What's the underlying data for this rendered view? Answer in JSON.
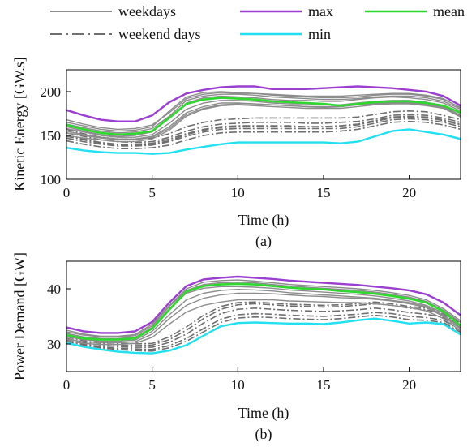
{
  "legend": {
    "items": [
      {
        "key": "weekdays",
        "label": "weekdays",
        "color": "#8c8c8c",
        "dash": "solid"
      },
      {
        "key": "weekend",
        "label": "weekend days",
        "color": "#6e6e6e",
        "dash": "dashdot"
      },
      {
        "key": "max",
        "label": "max",
        "color": "#9b3fd0",
        "dash": "solid"
      },
      {
        "key": "min",
        "label": "min",
        "color": "#22e0f0",
        "dash": "solid"
      },
      {
        "key": "mean",
        "label": "mean",
        "color": "#2ed82e",
        "dash": "solid"
      }
    ]
  },
  "colors": {
    "weekdays": "#8c8c8c",
    "weekend": "#6e6e6e",
    "max": "#9b3fd0",
    "min": "#22e0f0",
    "mean": "#2ed82e"
  },
  "chart_data": [
    {
      "type": "line",
      "caption": "(a)",
      "xlabel": "Time (h)",
      "ylabel": "Kinetic Energy [GW.s]",
      "xlim": [
        0,
        23
      ],
      "ylim": [
        100,
        225
      ],
      "xticks": [
        0,
        5,
        10,
        15,
        20
      ],
      "yticks": [
        100,
        150,
        200
      ],
      "x": [
        0,
        1,
        2,
        3,
        4,
        5,
        6,
        7,
        8,
        9,
        10,
        11,
        12,
        13,
        14,
        15,
        16,
        17,
        18,
        19,
        20,
        21,
        22,
        23
      ],
      "series": [
        {
          "name": "max",
          "role": "max",
          "values": [
            179,
            173,
            168,
            166,
            166,
            173,
            188,
            198,
            202,
            205,
            206,
            206,
            203,
            203,
            203,
            204,
            205,
            206,
            205,
            204,
            202,
            200,
            195,
            184
          ]
        },
        {
          "name": "mean",
          "role": "mean",
          "values": [
            162,
            157,
            153,
            151,
            152,
            155,
            170,
            186,
            191,
            193,
            192,
            191,
            189,
            188,
            187,
            186,
            184,
            186,
            188,
            189,
            189,
            187,
            184,
            176
          ]
        },
        {
          "name": "min",
          "role": "min",
          "values": [
            136,
            133,
            131,
            130,
            130,
            129,
            130,
            134,
            137,
            140,
            142,
            142,
            142,
            142,
            142,
            142,
            141,
            143,
            149,
            155,
            157,
            154,
            151,
            146
          ]
        },
        {
          "role": "weekday",
          "values": [
            165,
            161,
            157,
            155,
            156,
            160,
            178,
            194,
            199,
            200,
            199,
            198,
            196,
            195,
            194,
            193,
            193,
            194,
            196,
            197,
            197,
            195,
            191,
            182
          ]
        },
        {
          "role": "weekday",
          "values": [
            160,
            155,
            151,
            149,
            150,
            154,
            170,
            187,
            193,
            195,
            194,
            193,
            191,
            190,
            190,
            189,
            189,
            191,
            193,
            194,
            193,
            191,
            187,
            178
          ]
        },
        {
          "role": "weekday",
          "values": [
            158,
            154,
            150,
            148,
            148,
            151,
            164,
            180,
            187,
            190,
            190,
            189,
            187,
            186,
            186,
            185,
            185,
            187,
            189,
            190,
            190,
            188,
            184,
            175
          ]
        },
        {
          "role": "weekday",
          "values": [
            155,
            151,
            148,
            146,
            146,
            149,
            160,
            176,
            183,
            187,
            187,
            186,
            185,
            184,
            183,
            182,
            183,
            185,
            187,
            188,
            188,
            186,
            183,
            173
          ]
        },
        {
          "role": "weekday",
          "values": [
            163,
            159,
            155,
            153,
            154,
            158,
            172,
            190,
            195,
            197,
            197,
            196,
            194,
            193,
            192,
            191,
            191,
            192,
            194,
            195,
            195,
            193,
            189,
            180
          ]
        },
        {
          "role": "weekday",
          "values": [
            150,
            147,
            145,
            143,
            143,
            146,
            156,
            172,
            180,
            184,
            185,
            184,
            183,
            182,
            181,
            181,
            181,
            183,
            185,
            186,
            186,
            184,
            181,
            171
          ]
        },
        {
          "role": "weekday",
          "values": [
            153,
            150,
            147,
            145,
            145,
            148,
            158,
            174,
            181,
            185,
            186,
            186,
            185,
            184,
            183,
            183,
            183,
            185,
            186,
            187,
            187,
            185,
            182,
            172
          ]
        },
        {
          "role": "weekday",
          "values": [
            168,
            163,
            159,
            157,
            158,
            162,
            176,
            192,
            197,
            199,
            198,
            198,
            197,
            196,
            195,
            195,
            195,
            196,
            197,
            198,
            198,
            196,
            192,
            181
          ]
        },
        {
          "role": "weekend",
          "values": [
            150,
            146,
            142,
            140,
            140,
            141,
            146,
            152,
            157,
            160,
            161,
            161,
            161,
            161,
            160,
            160,
            161,
            162,
            166,
            170,
            171,
            170,
            167,
            162
          ]
        },
        {
          "role": "weekend",
          "values": [
            147,
            143,
            140,
            138,
            138,
            139,
            143,
            149,
            154,
            157,
            158,
            158,
            158,
            158,
            158,
            158,
            158,
            160,
            164,
            168,
            169,
            168,
            165,
            160
          ]
        },
        {
          "role": "weekend",
          "values": [
            153,
            149,
            145,
            143,
            142,
            143,
            148,
            155,
            160,
            163,
            164,
            165,
            165,
            165,
            164,
            164,
            165,
            166,
            169,
            173,
            174,
            173,
            170,
            165
          ]
        },
        {
          "role": "weekend",
          "values": [
            144,
            140,
            137,
            135,
            135,
            136,
            139,
            145,
            150,
            153,
            154,
            154,
            154,
            154,
            154,
            154,
            155,
            157,
            161,
            165,
            166,
            165,
            162,
            157
          ]
        },
        {
          "role": "weekend",
          "values": [
            157,
            152,
            148,
            146,
            146,
            147,
            152,
            160,
            165,
            168,
            169,
            170,
            170,
            170,
            170,
            170,
            170,
            171,
            174,
            177,
            178,
            177,
            173,
            168
          ]
        },
        {
          "role": "weekend",
          "values": [
            149,
            145,
            141,
            139,
            139,
            140,
            144,
            151,
            156,
            159,
            160,
            160,
            160,
            160,
            160,
            160,
            161,
            163,
            167,
            171,
            172,
            171,
            168,
            163
          ]
        }
      ]
    },
    {
      "type": "line",
      "caption": "(b)",
      "xlabel": "Time (h)",
      "ylabel": "Power Demand [GW]",
      "xlim": [
        0,
        23
      ],
      "ylim": [
        25,
        45
      ],
      "xticks": [
        0,
        5,
        10,
        15,
        20
      ],
      "yticks": [
        30,
        40
      ],
      "x": [
        0,
        1,
        2,
        3,
        4,
        5,
        6,
        7,
        8,
        9,
        10,
        11,
        12,
        13,
        14,
        15,
        16,
        17,
        18,
        19,
        20,
        21,
        22,
        23
      ],
      "series": [
        {
          "name": "max",
          "role": "max",
          "values": [
            33.0,
            32.3,
            32.0,
            32.0,
            32.3,
            34.0,
            37.5,
            40.5,
            41.7,
            42.0,
            42.2,
            42.0,
            41.8,
            41.5,
            41.3,
            41.1,
            40.9,
            40.7,
            40.4,
            40.1,
            39.7,
            39.0,
            37.5,
            35.2
          ]
        },
        {
          "name": "mean",
          "role": "mean",
          "values": [
            31.6,
            31.0,
            30.8,
            30.8,
            31.0,
            32.8,
            36.2,
            39.5,
            40.5,
            40.8,
            40.9,
            40.8,
            40.5,
            40.2,
            40.0,
            39.9,
            39.6,
            39.4,
            39.1,
            38.7,
            38.2,
            37.5,
            35.9,
            33.3
          ]
        },
        {
          "name": "min",
          "role": "min",
          "values": [
            30.2,
            29.5,
            29.0,
            28.6,
            28.4,
            28.3,
            28.8,
            29.8,
            31.5,
            33.2,
            33.8,
            33.9,
            33.8,
            33.7,
            33.7,
            33.6,
            33.9,
            34.3,
            34.6,
            34.2,
            33.7,
            33.9,
            33.6,
            31.7
          ]
        },
        {
          "role": "weekday",
          "values": [
            32.5,
            31.8,
            31.4,
            31.4,
            31.7,
            33.6,
            37.0,
            40.0,
            41.2,
            41.5,
            41.6,
            41.4,
            41.1,
            40.8,
            40.6,
            40.4,
            40.2,
            40.0,
            39.7,
            39.3,
            38.8,
            38.0,
            36.4,
            34.2
          ]
        },
        {
          "role": "weekday",
          "values": [
            31.9,
            31.3,
            31.0,
            31.0,
            31.2,
            33.0,
            36.4,
            39.2,
            40.1,
            40.4,
            40.4,
            40.3,
            40.1,
            39.8,
            39.6,
            39.4,
            39.2,
            39.0,
            38.7,
            38.3,
            37.8,
            37.0,
            35.6,
            33.5
          ]
        },
        {
          "role": "weekday",
          "values": [
            31.3,
            30.8,
            30.5,
            30.5,
            30.7,
            32.3,
            35.3,
            38.0,
            39.2,
            39.7,
            39.9,
            39.8,
            39.6,
            39.3,
            39.1,
            38.9,
            38.7,
            38.5,
            38.3,
            37.9,
            37.5,
            36.8,
            35.2,
            33.0
          ]
        },
        {
          "role": "weekday",
          "values": [
            30.9,
            30.4,
            30.2,
            30.2,
            30.4,
            31.8,
            34.6,
            37.0,
            38.3,
            38.9,
            39.2,
            39.2,
            39.1,
            38.9,
            38.7,
            38.6,
            38.4,
            38.3,
            38.1,
            37.8,
            37.3,
            36.6,
            35.0,
            32.7
          ]
        },
        {
          "role": "weekday",
          "values": [
            30.6,
            30.1,
            29.9,
            29.9,
            30.1,
            31.2,
            33.6,
            35.8,
            37.0,
            37.6,
            38.0,
            38.0,
            38.0,
            37.8,
            37.7,
            37.6,
            37.5,
            37.5,
            37.3,
            37.0,
            36.6,
            36.0,
            34.6,
            32.4
          ]
        },
        {
          "role": "weekday",
          "values": [
            32.2,
            31.6,
            31.3,
            31.3,
            31.5,
            33.3,
            36.8,
            39.7,
            40.8,
            41.1,
            41.2,
            41.1,
            40.8,
            40.5,
            40.3,
            40.1,
            39.9,
            39.7,
            39.4,
            39.0,
            38.5,
            37.7,
            36.1,
            33.9
          ]
        },
        {
          "role": "weekend",
          "values": [
            31.0,
            30.3,
            29.8,
            29.5,
            29.4,
            29.4,
            30.3,
            31.8,
            33.8,
            35.5,
            36.3,
            36.5,
            36.3,
            36.1,
            36.0,
            35.9,
            36.0,
            36.2,
            36.5,
            36.2,
            35.7,
            35.4,
            34.8,
            32.8
          ]
        },
        {
          "role": "weekend",
          "values": [
            30.7,
            30.0,
            29.5,
            29.2,
            29.1,
            29.0,
            29.7,
            31.0,
            32.8,
            34.5,
            35.3,
            35.5,
            35.4,
            35.2,
            35.1,
            35.0,
            35.2,
            35.4,
            35.7,
            35.5,
            35.0,
            34.8,
            34.3,
            32.4
          ]
        },
        {
          "role": "weekend",
          "values": [
            31.3,
            30.6,
            30.1,
            29.8,
            29.7,
            29.8,
            30.8,
            32.5,
            34.6,
            36.3,
            37.1,
            37.3,
            37.1,
            36.9,
            36.8,
            36.7,
            36.8,
            37.0,
            37.3,
            37.0,
            36.5,
            36.2,
            35.4,
            33.3
          ]
        },
        {
          "role": "weekend",
          "values": [
            30.5,
            29.8,
            29.3,
            29.0,
            28.8,
            28.7,
            29.3,
            30.5,
            32.2,
            33.9,
            34.7,
            34.9,
            34.8,
            34.6,
            34.5,
            34.4,
            34.6,
            34.9,
            35.2,
            34.9,
            34.4,
            34.3,
            33.9,
            32.1
          ]
        },
        {
          "role": "weekend",
          "values": [
            31.6,
            30.9,
            30.4,
            30.1,
            30.0,
            30.1,
            31.3,
            33.1,
            35.2,
            36.8,
            37.5,
            37.6,
            37.4,
            37.2,
            37.1,
            37.0,
            37.1,
            37.3,
            37.6,
            37.3,
            36.8,
            36.5,
            35.8,
            33.7
          ]
        }
      ]
    }
  ]
}
